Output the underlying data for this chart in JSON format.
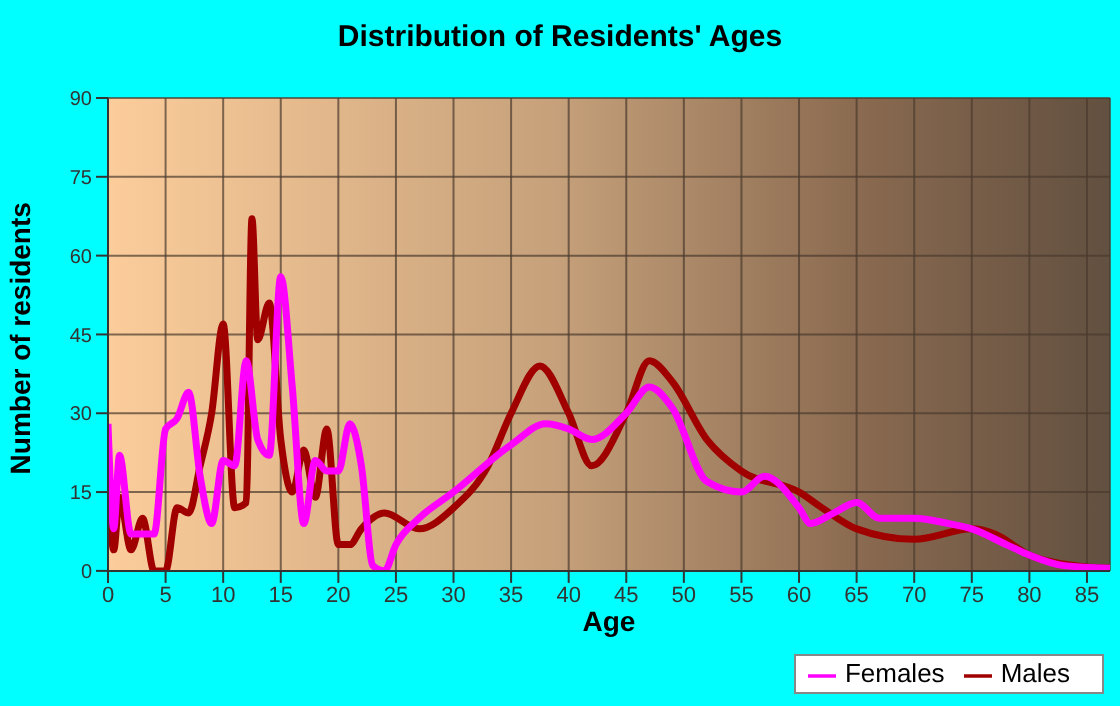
{
  "chart_data": {
    "type": "line",
    "title": "Distribution of Residents' Ages",
    "xlabel": "Age",
    "ylabel": "Number of residents",
    "xlim": [
      0,
      87
    ],
    "xticks": [
      0,
      5,
      10,
      15,
      20,
      25,
      30,
      35,
      40,
      45,
      50,
      55,
      60,
      65,
      70,
      75,
      80,
      85
    ],
    "ylim": [
      0,
      90
    ],
    "yticks": [
      0,
      15,
      30,
      45,
      60,
      75,
      90
    ],
    "grid": true,
    "legend": "bottom right",
    "marker": "none",
    "line_style": "solid",
    "series": [
      {
        "name": "Males",
        "color": "#a00000",
        "x": [
          0,
          0.5,
          1,
          2,
          3,
          4,
          5,
          6,
          7,
          8,
          9,
          10,
          11,
          12,
          12.5,
          13,
          14,
          15,
          16,
          17,
          18,
          19,
          20,
          21,
          22,
          24,
          27,
          30,
          33,
          35,
          37.5,
          40,
          42,
          45,
          47,
          49,
          52,
          55,
          60,
          62,
          65,
          70,
          75,
          77,
          80,
          84,
          87
        ],
        "values": [
          17,
          4,
          14,
          4,
          10,
          0,
          0,
          12,
          11,
          20,
          30,
          47,
          12,
          13,
          67,
          44,
          51,
          25,
          15,
          23,
          14,
          27,
          5,
          5,
          8,
          11,
          8,
          12,
          20,
          30,
          39,
          30,
          20,
          30,
          40,
          36,
          25,
          19,
          15,
          12,
          8,
          6,
          8,
          7,
          3,
          1,
          0.5
        ]
      },
      {
        "name": "Females",
        "color": "#ff00ff",
        "x": [
          0,
          0.5,
          1,
          2,
          3,
          4,
          5,
          6,
          7,
          8,
          9,
          10,
          11,
          12,
          13,
          14,
          15,
          16,
          17,
          18,
          19,
          20,
          21,
          22,
          23,
          24,
          25,
          27,
          30,
          35,
          38,
          40,
          42,
          45,
          47,
          49,
          52,
          55,
          57,
          60,
          61,
          63,
          65,
          67,
          70,
          73,
          75,
          78,
          80,
          83,
          87
        ],
        "values": [
          28,
          8,
          22,
          7,
          7,
          7,
          27,
          29,
          34,
          18,
          9,
          21,
          20,
          40,
          25,
          22,
          56,
          35,
          9,
          21,
          19,
          19,
          28,
          20,
          1,
          0,
          5,
          10,
          15,
          24,
          28,
          27,
          25,
          30,
          35,
          31,
          17,
          15,
          18,
          12,
          9,
          11,
          13,
          10,
          10,
          9,
          8,
          5,
          3,
          1,
          0.5
        ]
      }
    ]
  }
}
